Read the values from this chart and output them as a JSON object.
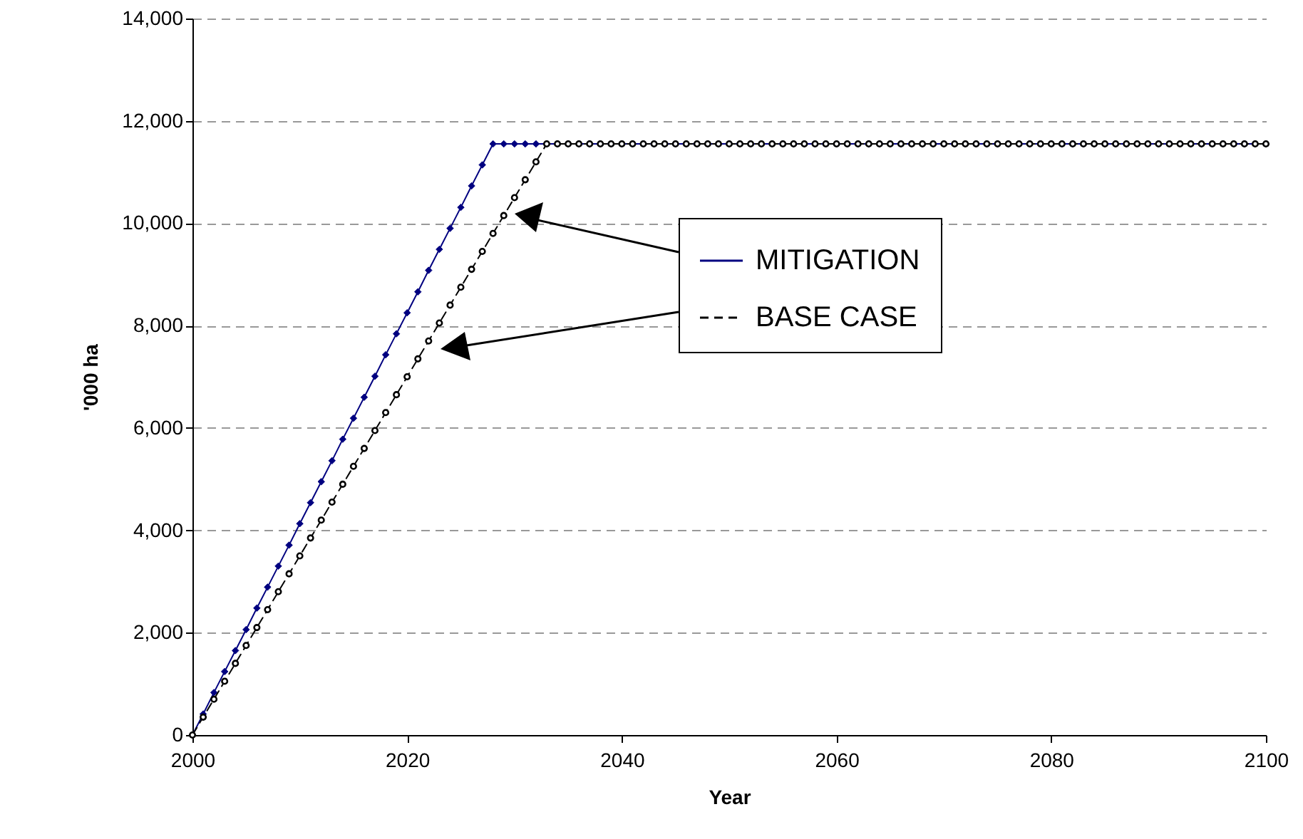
{
  "chart_data": {
    "type": "line",
    "xlabel": "Year",
    "ylabel": "'000 ha",
    "x": [
      2000,
      2001,
      2002,
      2003,
      2004,
      2005,
      2006,
      2007,
      2008,
      2009,
      2010,
      2011,
      2012,
      2013,
      2014,
      2015,
      2016,
      2017,
      2018,
      2019,
      2020,
      2021,
      2022,
      2023,
      2024,
      2025,
      2026,
      2027,
      2028,
      2029,
      2030,
      2031,
      2032,
      2033,
      2034,
      2035,
      2036,
      2037,
      2038,
      2039,
      2040,
      2041,
      2042,
      2043,
      2044,
      2045,
      2046,
      2047,
      2048,
      2049,
      2050,
      2051,
      2052,
      2053,
      2054,
      2055,
      2056,
      2057,
      2058,
      2059,
      2060,
      2061,
      2062,
      2063,
      2064,
      2065,
      2066,
      2067,
      2068,
      2069,
      2070,
      2071,
      2072,
      2073,
      2074,
      2075,
      2076,
      2077,
      2078,
      2079,
      2080,
      2081,
      2082,
      2083,
      2084,
      2085,
      2086,
      2087,
      2088,
      2089,
      2090,
      2091,
      2092,
      2093,
      2094,
      2095,
      2096,
      2097,
      2098,
      2099,
      2100
    ],
    "series": [
      {
        "name": "MITIGATION",
        "color": "#000080",
        "marker": "diamond",
        "line_style": "solid",
        "values": [
          0,
          410,
          830,
          1240,
          1650,
          2060,
          2480,
          2890,
          3300,
          3710,
          4130,
          4540,
          4950,
          5360,
          5780,
          6190,
          6600,
          7010,
          7430,
          7840,
          8250,
          8660,
          9080,
          9490,
          9900,
          10310,
          10730,
          11140,
          11550,
          11550,
          11550,
          11550,
          11550,
          11550,
          11550,
          11550,
          11550,
          11550,
          11550,
          11550,
          11550,
          11550,
          11550,
          11550,
          11550,
          11550,
          11550,
          11550,
          11550,
          11550,
          11550,
          11550,
          11550,
          11550,
          11550,
          11550,
          11550,
          11550,
          11550,
          11550,
          11550,
          11550,
          11550,
          11550,
          11550,
          11550,
          11550,
          11550,
          11550,
          11550,
          11550,
          11550,
          11550,
          11550,
          11550,
          11550,
          11550,
          11550,
          11550,
          11550,
          11550,
          11550,
          11550,
          11550,
          11550,
          11550,
          11550,
          11550,
          11550,
          11550,
          11550,
          11550,
          11550,
          11550,
          11550,
          11550,
          11550,
          11550,
          11550,
          11550,
          11550
        ]
      },
      {
        "name": "BASE CASE",
        "color": "#000000",
        "marker": "circle",
        "line_style": "dashed",
        "values": [
          0,
          350,
          700,
          1050,
          1400,
          1750,
          2100,
          2450,
          2800,
          3150,
          3500,
          3850,
          4200,
          4550,
          4900,
          5250,
          5600,
          5950,
          6300,
          6650,
          7000,
          7350,
          7700,
          8050,
          8400,
          8750,
          9100,
          9450,
          9800,
          10150,
          10500,
          10850,
          11200,
          11550,
          11550,
          11550,
          11550,
          11550,
          11550,
          11550,
          11550,
          11550,
          11550,
          11550,
          11550,
          11550,
          11550,
          11550,
          11550,
          11550,
          11550,
          11550,
          11550,
          11550,
          11550,
          11550,
          11550,
          11550,
          11550,
          11550,
          11550,
          11550,
          11550,
          11550,
          11550,
          11550,
          11550,
          11550,
          11550,
          11550,
          11550,
          11550,
          11550,
          11550,
          11550,
          11550,
          11550,
          11550,
          11550,
          11550,
          11550,
          11550,
          11550,
          11550,
          11550,
          11550,
          11550,
          11550,
          11550,
          11550,
          11550,
          11550,
          11550,
          11550,
          11550,
          11550,
          11550,
          11550,
          11550,
          11550,
          11550
        ]
      }
    ],
    "xlim": [
      2000,
      2100
    ],
    "xticks": [
      2000,
      2020,
      2040,
      2060,
      2080,
      2100
    ],
    "ylim": [
      0,
      14000
    ],
    "yticks": [
      0,
      {
        "value": 2000,
        "label": "2,000"
      },
      {
        "value": 4000,
        "label": "4,000"
      },
      {
        "value": 6000,
        "label": "6,000"
      },
      {
        "value": 8000,
        "label": "8,000"
      },
      {
        "value": 10000,
        "label": "10,000"
      },
      {
        "value": 12000,
        "label": "12,000"
      },
      {
        "value": 14000,
        "label": "14,000"
      }
    ],
    "grid": "y",
    "legend": "right"
  }
}
